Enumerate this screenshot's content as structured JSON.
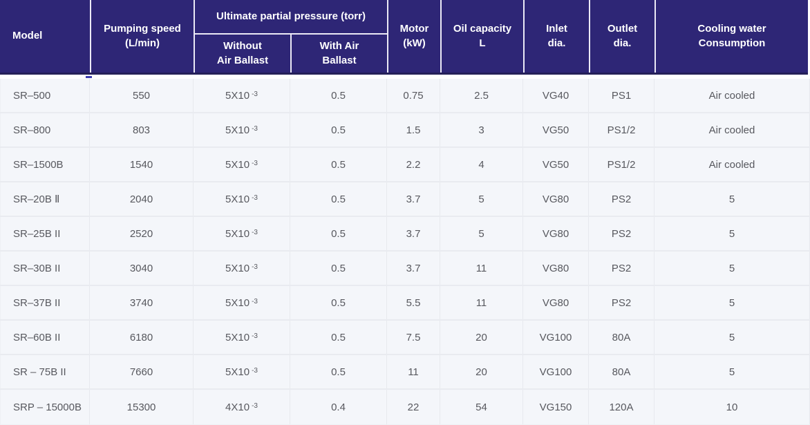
{
  "colors": {
    "header_bg": "#2E2676",
    "header_text": "#FFFFFF",
    "header_separator": "#ECEAF6",
    "header_bottom_strip": "#252058",
    "row_bg": "#F4F6FA",
    "row_border": "#E9EBF0",
    "body_text": "#57585E"
  },
  "header": {
    "model": "Model",
    "pumping_speed": {
      "line1": "Pumping speed",
      "line2": "(L/min)"
    },
    "ultimate_pressure_group": "Ultimate partial pressure (torr)",
    "without_air_ballast": {
      "line1": "Without",
      "line2": "Air Ballast"
    },
    "with_air_ballast": {
      "line1": "With Air",
      "line2": "Ballast"
    },
    "motor": {
      "line1": "Motor",
      "line2": "(kW)"
    },
    "oil_capacity": {
      "line1": "Oil capacity",
      "line2": "L"
    },
    "inlet_dia": {
      "line1": "Inlet",
      "line2": "dia."
    },
    "outlet_dia": {
      "line1": "Outlet",
      "line2": "dia."
    },
    "cooling_water": {
      "line1": "Cooling water",
      "line2": "Consumption"
    }
  },
  "rows": [
    {
      "model": "SR–500",
      "pumping_speed": "550",
      "without_air_ballast": {
        "base": "5X10",
        "exp": "-3"
      },
      "with_air_ballast": "0.5",
      "motor_kw": "0.75",
      "oil_capacity": "2.5",
      "inlet_dia": "VG40",
      "outlet_dia": "PS1",
      "cooling_water": "Air cooled"
    },
    {
      "model": "SR–800",
      "pumping_speed": "803",
      "without_air_ballast": {
        "base": "5X10",
        "exp": "-3"
      },
      "with_air_ballast": "0.5",
      "motor_kw": "1.5",
      "oil_capacity": "3",
      "inlet_dia": "VG50",
      "outlet_dia": "PS1/2",
      "cooling_water": "Air cooled"
    },
    {
      "model": "SR–1500B",
      "pumping_speed": "1540",
      "without_air_ballast": {
        "base": "5X10",
        "exp": "-3"
      },
      "with_air_ballast": "0.5",
      "motor_kw": "2.2",
      "oil_capacity": "4",
      "inlet_dia": "VG50",
      "outlet_dia": "PS1/2",
      "cooling_water": "Air cooled"
    },
    {
      "model": "SR–20B Ⅱ",
      "pumping_speed": "2040",
      "without_air_ballast": {
        "base": "5X10",
        "exp": "-3"
      },
      "with_air_ballast": "0.5",
      "motor_kw": "3.7",
      "oil_capacity": "5",
      "inlet_dia": "VG80",
      "outlet_dia": "PS2",
      "cooling_water": "5"
    },
    {
      "model": "SR–25B II",
      "pumping_speed": "2520",
      "without_air_ballast": {
        "base": "5X10",
        "exp": "-3"
      },
      "with_air_ballast": "0.5",
      "motor_kw": "3.7",
      "oil_capacity": "5",
      "inlet_dia": "VG80",
      "outlet_dia": "PS2",
      "cooling_water": "5"
    },
    {
      "model": "SR–30B II",
      "pumping_speed": "3040",
      "without_air_ballast": {
        "base": "5X10",
        "exp": "-3"
      },
      "with_air_ballast": "0.5",
      "motor_kw": "3.7",
      "oil_capacity": "11",
      "inlet_dia": "VG80",
      "outlet_dia": "PS2",
      "cooling_water": "5"
    },
    {
      "model": "SR–37B II",
      "pumping_speed": "3740",
      "without_air_ballast": {
        "base": "5X10",
        "exp": "-3"
      },
      "with_air_ballast": "0.5",
      "motor_kw": "5.5",
      "oil_capacity": "11",
      "inlet_dia": "VG80",
      "outlet_dia": "PS2",
      "cooling_water": "5"
    },
    {
      "model": "SR–60B II",
      "pumping_speed": "6180",
      "without_air_ballast": {
        "base": "5X10",
        "exp": "-3"
      },
      "with_air_ballast": "0.5",
      "motor_kw": "7.5",
      "oil_capacity": "20",
      "inlet_dia": "VG100",
      "outlet_dia": "80A",
      "cooling_water": "5"
    },
    {
      "model": "SR – 75B II",
      "pumping_speed": "7660",
      "without_air_ballast": {
        "base": "5X10",
        "exp": "-3"
      },
      "with_air_ballast": "0.5",
      "motor_kw": "11",
      "oil_capacity": "20",
      "inlet_dia": "VG100",
      "outlet_dia": "80A",
      "cooling_water": "5"
    },
    {
      "model": "SRP – 15000B",
      "pumping_speed": "15300",
      "without_air_ballast": {
        "base": "4X10",
        "exp": "-3"
      },
      "with_air_ballast": "0.4",
      "motor_kw": "22",
      "oil_capacity": "54",
      "inlet_dia": "VG150",
      "outlet_dia": "120A",
      "cooling_water": "10"
    }
  ]
}
